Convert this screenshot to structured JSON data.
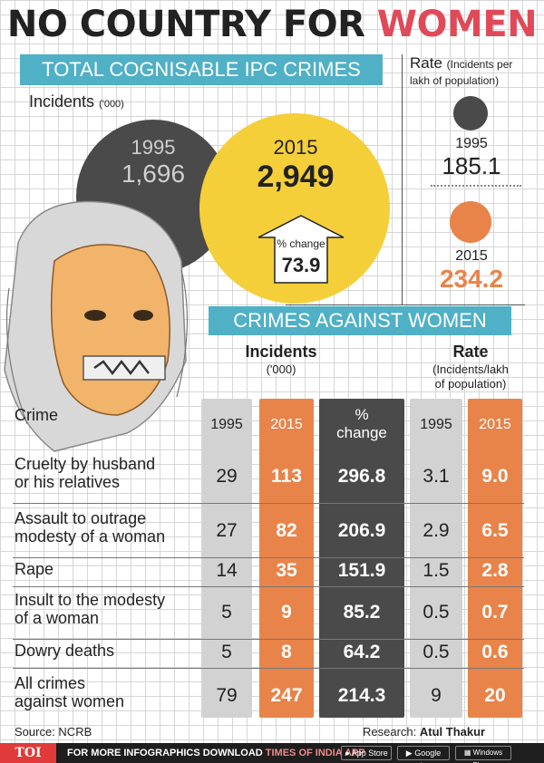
{
  "header": {
    "title_main": "NO COUNTRY FOR",
    "title_highlight": "WOMEN",
    "section1_title": "TOTAL COGNISABLE IPC CRIMES",
    "incidents_label": "Incidents",
    "incidents_unit": "('000)",
    "section2_title": "CRIMES AGAINST WOMEN"
  },
  "totals": {
    "y1995_label": "1995",
    "y1995_value": "1,696",
    "y2015_label": "2015",
    "y2015_value": "2,949",
    "pct_label": "% change",
    "pct_value": "73.9"
  },
  "rate_panel": {
    "title": "Rate",
    "subtitle_line1": "(Incidents per",
    "subtitle_line2": "lakh of population)",
    "y1995_label": "1995",
    "y1995_value": "185.1",
    "y2015_label": "2015",
    "y2015_value": "234.2"
  },
  "table": {
    "incidents_header": "Incidents",
    "incidents_unit": "('000)",
    "rate_header": "Rate",
    "rate_unit_line1": "(Incidents/lakh",
    "rate_unit_line2": "of population)",
    "crime_header": "Crime",
    "col_1995": "1995",
    "col_2015": "2015",
    "col_change_line1": "%",
    "col_change_line2": "change",
    "col_rate_1995": "1995",
    "col_rate_2015": "2015"
  },
  "colors": {
    "gray_1995": "#4a4a4a",
    "yellow_2015": "#f5cf3a",
    "orange_2015": "#e8844a",
    "banner": "#4fb0c6",
    "col_1995_bg": "#d2d2d2",
    "col_change_bg": "#4a4a4a",
    "accent_pink": "#e04a58"
  },
  "chart_data": {
    "type": "table",
    "title": "NO COUNTRY FOR WOMEN",
    "totals": {
      "metric": "Total cognisable IPC crimes, incidents ('000)",
      "x": [
        "1995",
        "2015"
      ],
      "values": [
        1696,
        2949
      ],
      "pct_change": 73.9,
      "rate": [
        185.1,
        234.2
      ]
    },
    "columns": [
      "Crime",
      "Incidents 1995",
      "Incidents 2015",
      "% change",
      "Rate 1995",
      "Rate 2015"
    ],
    "rows": [
      {
        "crime_line1": "Cruelty by husband",
        "crime_line2": "or his relatives",
        "inc_1995": "29",
        "inc_2015": "113",
        "pct": "296.8",
        "rate_1995": "3.1",
        "rate_2015": "9.0"
      },
      {
        "crime_line1": "Assault to outrage",
        "crime_line2": "modesty of a woman",
        "inc_1995": "27",
        "inc_2015": "82",
        "pct": "206.9",
        "rate_1995": "2.9",
        "rate_2015": "6.5"
      },
      {
        "crime_line1": "Rape",
        "crime_line2": "",
        "inc_1995": "14",
        "inc_2015": "35",
        "pct": "151.9",
        "rate_1995": "1.5",
        "rate_2015": "2.8"
      },
      {
        "crime_line1": "Insult to the modesty",
        "crime_line2": "of a woman",
        "inc_1995": "5",
        "inc_2015": "9",
        "pct": "85.2",
        "rate_1995": "0.5",
        "rate_2015": "0.7"
      },
      {
        "crime_line1": "Dowry deaths",
        "crime_line2": "",
        "inc_1995": "5",
        "inc_2015": "8",
        "pct": "64.2",
        "rate_1995": "0.5",
        "rate_2015": "0.6"
      },
      {
        "crime_line1": "All crimes",
        "crime_line2": "against women",
        "inc_1995": "79",
        "inc_2015": "247",
        "pct": "214.3",
        "rate_1995": "9",
        "rate_2015": "20"
      }
    ]
  },
  "footer": {
    "source": "Source: NCRB",
    "research_label": "Research:",
    "research_name": "Atul Thakur",
    "brand": "TOI",
    "promo_text": "FOR MORE INFOGRAPHICS DOWNLOAD",
    "promo_app": "TIMES OF INDIA APP",
    "store1": "App Store",
    "store2": "Google play",
    "store3": "Windows Phone"
  }
}
